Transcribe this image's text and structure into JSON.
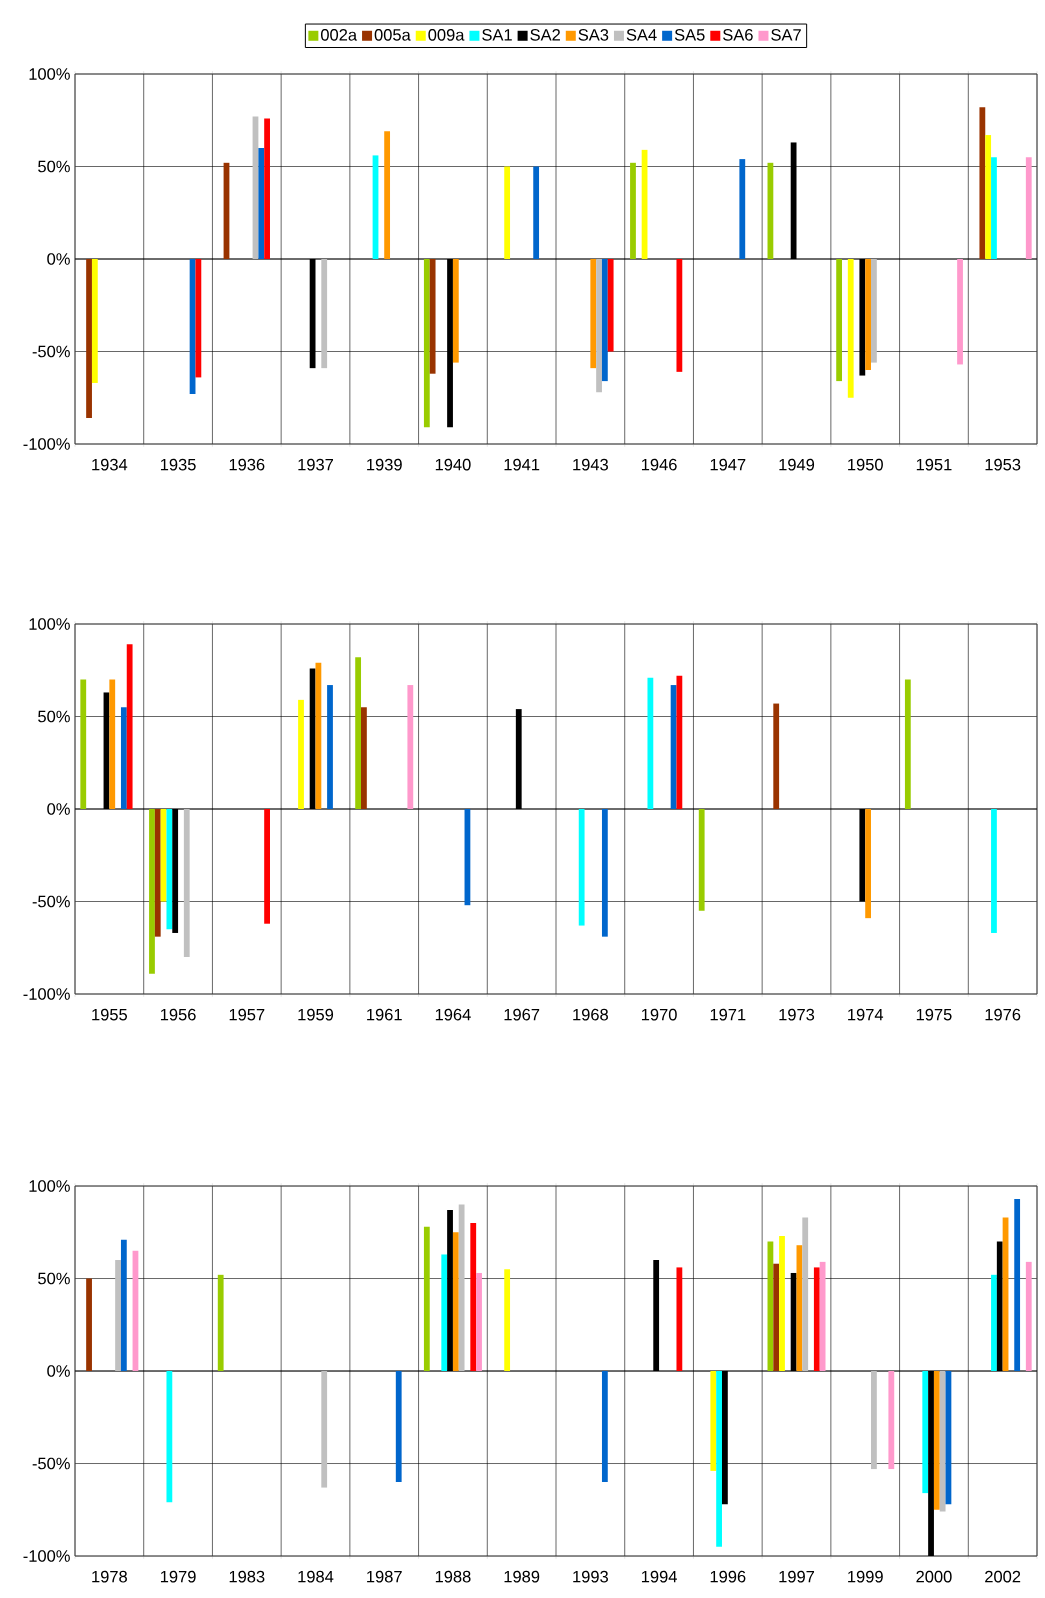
{
  "chart_data": [
    {
      "type": "bar",
      "legend": "top",
      "grid": true,
      "categories": [
        "1934",
        "1935",
        "1936",
        "1937",
        "1939",
        "1940",
        "1941",
        "1943",
        "1946",
        "1947",
        "1949",
        "1950",
        "1951",
        "1953"
      ],
      "ylim": [
        -100,
        100
      ],
      "yticks": [
        {
          "value": -100,
          "label": "-100%"
        },
        {
          "value": -50,
          "label": "-50%"
        },
        {
          "value": 0,
          "label": "0%"
        },
        {
          "value": 50,
          "label": "50%"
        },
        {
          "value": 100,
          "label": "100%"
        }
      ],
      "series": [
        {
          "name": "002a",
          "color": "#99cc00",
          "values": [
            null,
            null,
            null,
            null,
            null,
            -91,
            null,
            null,
            52,
            null,
            52,
            -66,
            null,
            null
          ]
        },
        {
          "name": "005a",
          "color": "#993300",
          "values": [
            -86,
            null,
            52,
            null,
            null,
            -62,
            null,
            null,
            null,
            null,
            null,
            null,
            null,
            82
          ]
        },
        {
          "name": "009a",
          "color": "#ffff00",
          "values": [
            -67,
            null,
            null,
            null,
            null,
            null,
            50,
            null,
            59,
            null,
            null,
            -75,
            null,
            67
          ]
        },
        {
          "name": "SA1",
          "color": "#00ffff",
          "values": [
            null,
            null,
            null,
            null,
            56,
            null,
            null,
            null,
            null,
            null,
            null,
            null,
            null,
            55
          ]
        },
        {
          "name": "SA2",
          "color": "#000000",
          "values": [
            null,
            null,
            null,
            -59,
            null,
            -91,
            null,
            null,
            null,
            null,
            63,
            -63,
            null,
            null
          ]
        },
        {
          "name": "SA3",
          "color": "#ff9900",
          "values": [
            null,
            null,
            null,
            null,
            69,
            -56,
            null,
            -59,
            null,
            null,
            null,
            -60,
            null,
            null
          ]
        },
        {
          "name": "SA4",
          "color": "#c0c0c0",
          "values": [
            null,
            null,
            77,
            -59,
            null,
            null,
            null,
            -72,
            null,
            null,
            null,
            -56,
            null,
            null
          ]
        },
        {
          "name": "SA5",
          "color": "#0066cc",
          "values": [
            null,
            -73,
            60,
            null,
            null,
            null,
            50,
            -66,
            null,
            54,
            null,
            null,
            null,
            null
          ]
        },
        {
          "name": "SA6",
          "color": "#ff0000",
          "values": [
            null,
            -64,
            76,
            null,
            null,
            null,
            null,
            -50,
            -61,
            null,
            null,
            null,
            null,
            null
          ]
        },
        {
          "name": "SA7",
          "color": "#ff99cc",
          "values": [
            null,
            null,
            null,
            null,
            null,
            null,
            null,
            null,
            null,
            null,
            null,
            null,
            -57,
            55
          ]
        }
      ]
    },
    {
      "type": "bar",
      "grid": true,
      "categories": [
        "1955",
        "1956",
        "1957",
        "1959",
        "1961",
        "1964",
        "1967",
        "1968",
        "1970",
        "1971",
        "1973",
        "1974",
        "1975",
        "1976"
      ],
      "ylim": [
        -100,
        100
      ],
      "yticks": [
        {
          "value": -100,
          "label": "-100%"
        },
        {
          "value": -50,
          "label": "-50%"
        },
        {
          "value": 0,
          "label": "0%"
        },
        {
          "value": 50,
          "label": "50%"
        },
        {
          "value": 100,
          "label": "100%"
        }
      ],
      "series": [
        {
          "color": "#99cc00",
          "values": [
            70,
            -89,
            null,
            null,
            82,
            null,
            null,
            null,
            null,
            -55,
            null,
            null,
            70,
            null
          ]
        },
        {
          "color": "#993300",
          "values": [
            null,
            -69,
            null,
            null,
            55,
            null,
            null,
            null,
            null,
            null,
            57,
            null,
            null,
            null
          ]
        },
        {
          "color": "#ffff00",
          "values": [
            null,
            -50,
            null,
            59,
            null,
            null,
            null,
            null,
            null,
            null,
            null,
            null,
            null,
            null
          ]
        },
        {
          "color": "#00ffff",
          "values": [
            null,
            -65,
            null,
            null,
            null,
            null,
            null,
            -63,
            71,
            null,
            null,
            null,
            null,
            -67
          ]
        },
        {
          "color": "#000000",
          "values": [
            63,
            -67,
            null,
            76,
            null,
            null,
            54,
            null,
            null,
            null,
            null,
            -50,
            null,
            null
          ]
        },
        {
          "color": "#ff9900",
          "values": [
            70,
            null,
            null,
            79,
            null,
            null,
            null,
            null,
            null,
            null,
            null,
            -59,
            null,
            null
          ]
        },
        {
          "color": "#c0c0c0",
          "values": [
            null,
            -80,
            null,
            null,
            null,
            null,
            null,
            null,
            null,
            null,
            null,
            null,
            null,
            null
          ]
        },
        {
          "color": "#0066cc",
          "values": [
            55,
            null,
            null,
            67,
            null,
            -52,
            null,
            -69,
            67,
            null,
            null,
            null,
            null,
            null
          ]
        },
        {
          "color": "#ff0000",
          "values": [
            89,
            null,
            -62,
            null,
            null,
            null,
            null,
            null,
            72,
            null,
            null,
            null,
            null,
            null
          ]
        },
        {
          "color": "#ff99cc",
          "values": [
            null,
            null,
            null,
            null,
            67,
            null,
            null,
            null,
            null,
            null,
            null,
            null,
            null,
            null
          ]
        }
      ]
    },
    {
      "type": "bar",
      "grid": true,
      "categories": [
        "1978",
        "1979",
        "1983",
        "1984",
        "1987",
        "1988",
        "1989",
        "1993",
        "1994",
        "1996",
        "1997",
        "1999",
        "2000",
        "2002"
      ],
      "ylim": [
        -100,
        100
      ],
      "yticks": [
        {
          "value": -100,
          "label": "-100%"
        },
        {
          "value": -50,
          "label": "-50%"
        },
        {
          "value": 0,
          "label": "0%"
        },
        {
          "value": 50,
          "label": "50%"
        },
        {
          "value": 100,
          "label": "100%"
        }
      ],
      "series": [
        {
          "color": "#99cc00",
          "values": [
            null,
            null,
            52,
            null,
            null,
            78,
            null,
            null,
            null,
            null,
            70,
            null,
            null,
            null
          ]
        },
        {
          "color": "#993300",
          "values": [
            50,
            null,
            null,
            null,
            null,
            null,
            null,
            null,
            null,
            null,
            58,
            null,
            null,
            null
          ]
        },
        {
          "color": "#ffff00",
          "values": [
            null,
            null,
            null,
            null,
            null,
            null,
            55,
            null,
            null,
            -54,
            73,
            null,
            null,
            null
          ]
        },
        {
          "color": "#00ffff",
          "values": [
            null,
            -71,
            null,
            null,
            null,
            63,
            null,
            null,
            null,
            -95,
            null,
            null,
            -66,
            52
          ]
        },
        {
          "color": "#000000",
          "values": [
            null,
            null,
            null,
            null,
            null,
            87,
            null,
            null,
            60,
            -72,
            53,
            null,
            -100,
            70
          ]
        },
        {
          "color": "#ff9900",
          "values": [
            null,
            null,
            null,
            null,
            null,
            75,
            null,
            null,
            null,
            null,
            68,
            null,
            -75,
            83
          ]
        },
        {
          "color": "#c0c0c0",
          "values": [
            60,
            null,
            null,
            -63,
            null,
            90,
            null,
            null,
            null,
            null,
            83,
            -53,
            -76,
            null
          ]
        },
        {
          "color": "#0066cc",
          "values": [
            71,
            null,
            null,
            null,
            -60,
            null,
            null,
            -60,
            null,
            null,
            null,
            null,
            -72,
            93
          ]
        },
        {
          "color": "#ff0000",
          "values": [
            null,
            null,
            null,
            null,
            null,
            80,
            null,
            null,
            56,
            null,
            56,
            null,
            null,
            null
          ]
        },
        {
          "color": "#ff99cc",
          "values": [
            65,
            null,
            null,
            null,
            null,
            53,
            null,
            null,
            null,
            null,
            59,
            -53,
            null,
            59
          ]
        }
      ]
    }
  ]
}
